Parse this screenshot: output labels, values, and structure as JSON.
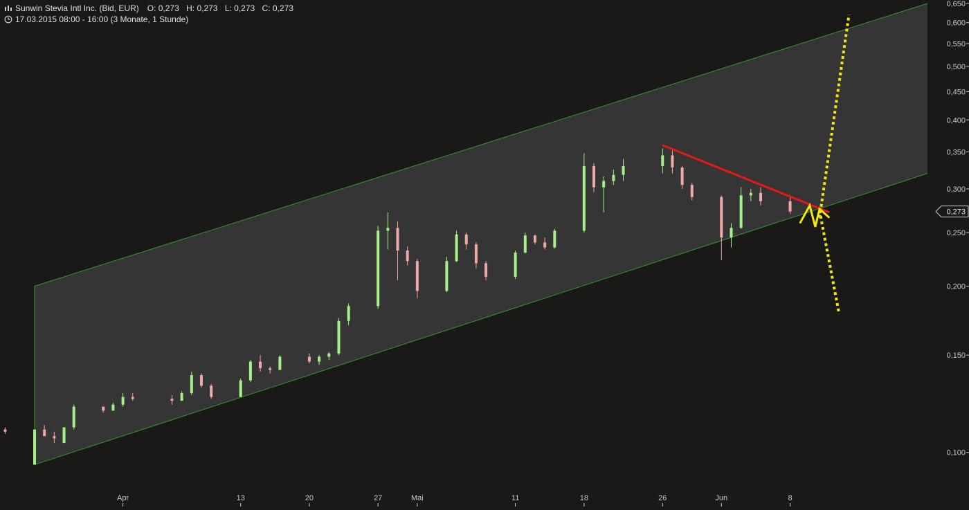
{
  "header": {
    "instrument": "Sunwin Stevia Intl Inc. (Bid, EUR)",
    "open": "O: 0,273",
    "high": "H: 0,273",
    "low": "L: 0,273",
    "close": "C: 0,273",
    "period": "17.03.2015 08:00 - 16:00 (3 Monate, 1 Stunde)"
  },
  "colors": {
    "background": "#1b1918",
    "channel_fill": "#363535",
    "channel_line": "#2e9a2e",
    "up": "#a6f08a",
    "down": "#f0a8a8",
    "resistance": "#e41919",
    "projection": "#f2e60f",
    "axis_text": "#c8c8c8"
  },
  "chart_data": {
    "type": "candlestick",
    "scale": "log",
    "ylim": [
      0.085,
      0.65
    ],
    "y_ticks": [
      "0,100",
      "0,150",
      "0,200",
      "0,250",
      "0,300",
      "0,350",
      "0,400",
      "0,450",
      "0,500",
      "0,550",
      "0,600",
      "0,650"
    ],
    "y_tick_values": [
      0.1,
      0.15,
      0.2,
      0.25,
      0.3,
      0.35,
      0.4,
      0.45,
      0.5,
      0.55,
      0.6,
      0.65
    ],
    "x_ticks": [
      "Apr",
      "13",
      "20",
      "27",
      "Mai",
      "11",
      "18",
      "26",
      "Jun",
      "8"
    ],
    "x_tick_dates": [
      "2015-04-01",
      "2015-04-13",
      "2015-04-20",
      "2015-04-27",
      "2015-05-01",
      "2015-05-11",
      "2015-05-18",
      "2015-05-26",
      "2015-06-01",
      "2015-06-08"
    ],
    "last_price_label": "0,273",
    "last_price": 0.273,
    "series": [
      {
        "kind": "ohlc",
        "values": [
          [
            "2015-03-17",
            0.115,
            0.116,
            0.114,
            0.115
          ],
          [
            "2015-03-18",
            0.115,
            0.117,
            0.112,
            0.112
          ],
          [
            "2015-03-19",
            0.112,
            0.112,
            0.109,
            0.11
          ],
          [
            "2015-03-20",
            0.11,
            0.111,
            0.108,
            0.109
          ],
          [
            "2015-03-23",
            0.095,
            0.11,
            0.095,
            0.11
          ],
          [
            "2015-03-24",
            0.11,
            0.112,
            0.107,
            0.107
          ],
          [
            "2015-03-25",
            0.107,
            0.109,
            0.104,
            0.106
          ],
          [
            "2015-03-26",
            0.104,
            0.111,
            0.104,
            0.111
          ],
          [
            "2015-03-27",
            0.111,
            0.122,
            0.11,
            0.121
          ],
          [
            "2015-03-30",
            0.121,
            0.121,
            0.118,
            0.119
          ],
          [
            "2015-03-31",
            0.119,
            0.123,
            0.119,
            0.122
          ],
          [
            "2015-04-01",
            0.122,
            0.128,
            0.121,
            0.126
          ],
          [
            "2015-04-02",
            0.126,
            0.128,
            0.124,
            0.125
          ],
          [
            "2015-04-06",
            0.125,
            0.127,
            0.122,
            0.124
          ],
          [
            "2015-04-07",
            0.124,
            0.129,
            0.124,
            0.128
          ],
          [
            "2015-04-08",
            0.128,
            0.14,
            0.127,
            0.138
          ],
          [
            "2015-04-09",
            0.138,
            0.139,
            0.131,
            0.132
          ],
          [
            "2015-04-10",
            0.132,
            0.133,
            0.125,
            0.126
          ],
          [
            "2015-04-13",
            0.126,
            0.136,
            0.126,
            0.135
          ],
          [
            "2015-04-14",
            0.135,
            0.147,
            0.134,
            0.146
          ],
          [
            "2015-04-15",
            0.146,
            0.15,
            0.14,
            0.142
          ],
          [
            "2015-04-16",
            0.142,
            0.143,
            0.139,
            0.141
          ],
          [
            "2015-04-17",
            0.141,
            0.15,
            0.141,
            0.149
          ],
          [
            "2015-04-20",
            0.149,
            0.151,
            0.145,
            0.146
          ],
          [
            "2015-04-21",
            0.146,
            0.15,
            0.144,
            0.149
          ],
          [
            "2015-04-22",
            0.149,
            0.152,
            0.147,
            0.151
          ],
          [
            "2015-04-23",
            0.151,
            0.175,
            0.15,
            0.173
          ],
          [
            "2015-04-24",
            0.173,
            0.186,
            0.17,
            0.184
          ],
          [
            "2015-04-27",
            0.184,
            0.257,
            0.182,
            0.252
          ],
          [
            "2015-04-28",
            0.252,
            0.272,
            0.233,
            0.255
          ],
          [
            "2015-04-29",
            0.255,
            0.262,
            0.205,
            0.232
          ],
          [
            "2015-04-30",
            0.232,
            0.236,
            0.218,
            0.222
          ],
          [
            "2015-05-01",
            0.222,
            0.224,
            0.19,
            0.196
          ],
          [
            "2015-05-04",
            0.196,
            0.226,
            0.195,
            0.222
          ],
          [
            "2015-05-05",
            0.222,
            0.252,
            0.221,
            0.248
          ],
          [
            "2015-05-06",
            0.248,
            0.25,
            0.233,
            0.238
          ],
          [
            "2015-05-07",
            0.238,
            0.24,
            0.215,
            0.22
          ],
          [
            "2015-05-08",
            0.22,
            0.222,
            0.205,
            0.208
          ],
          [
            "2015-05-11",
            0.208,
            0.232,
            0.206,
            0.23
          ],
          [
            "2015-05-12",
            0.23,
            0.25,
            0.229,
            0.247
          ],
          [
            "2015-05-13",
            0.247,
            0.248,
            0.238,
            0.24
          ],
          [
            "2015-05-14",
            0.24,
            0.245,
            0.233,
            0.235
          ],
          [
            "2015-05-15",
            0.235,
            0.254,
            0.234,
            0.252
          ],
          [
            "2015-05-18",
            0.252,
            0.348,
            0.25,
            0.33
          ],
          [
            "2015-05-19",
            0.33,
            0.334,
            0.296,
            0.302
          ],
          [
            "2015-05-20",
            0.302,
            0.316,
            0.272,
            0.31
          ],
          [
            "2015-05-21",
            0.31,
            0.325,
            0.305,
            0.318
          ],
          [
            "2015-05-22",
            0.318,
            0.34,
            0.31,
            0.33
          ],
          [
            "2015-05-26",
            0.33,
            0.355,
            0.32,
            0.345
          ],
          [
            "2015-05-27",
            0.345,
            0.352,
            0.32,
            0.328
          ],
          [
            "2015-05-28",
            0.328,
            0.33,
            0.3,
            0.305
          ],
          [
            "2015-05-29",
            0.305,
            0.308,
            0.286,
            0.29
          ],
          [
            "2015-06-01",
            0.29,
            0.292,
            0.223,
            0.245
          ],
          [
            "2015-06-02",
            0.245,
            0.26,
            0.235,
            0.255
          ],
          [
            "2015-06-03",
            0.255,
            0.302,
            0.254,
            0.292
          ],
          [
            "2015-06-04",
            0.292,
            0.3,
            0.285,
            0.295
          ],
          [
            "2015-06-05",
            0.295,
            0.302,
            0.28,
            0.285
          ],
          [
            "2015-06-08",
            0.285,
            0.292,
            0.27,
            0.273
          ]
        ]
      }
    ],
    "annotations": [
      {
        "name": "trend-channel",
        "kind": "parallel-channel",
        "upper": [
          [
            "2015-03-23",
            0.2
          ],
          [
            "2015-06-22",
            0.65
          ]
        ],
        "lower": [
          [
            "2015-03-23",
            0.095
          ],
          [
            "2015-06-22",
            0.32
          ]
        ]
      },
      {
        "name": "resistance-line",
        "kind": "line",
        "points": [
          [
            "2015-05-26",
            0.36
          ],
          [
            "2015-06-12",
            0.272
          ]
        ]
      },
      {
        "name": "projection-zigzag",
        "kind": "polyline",
        "points": [
          [
            "2015-06-09",
            0.26
          ],
          [
            "2015-06-10",
            0.28
          ],
          [
            "2015-06-10",
            0.256
          ],
          [
            "2015-06-11",
            0.276
          ],
          [
            "2015-06-12",
            0.266
          ]
        ]
      },
      {
        "name": "projection-up",
        "kind": "dotted-line",
        "points": [
          [
            "2015-06-11",
            0.266
          ],
          [
            "2015-06-14",
            0.62
          ]
        ]
      },
      {
        "name": "projection-down",
        "kind": "dotted-line",
        "points": [
          [
            "2015-06-11",
            0.274
          ],
          [
            "2015-06-13",
            0.178
          ]
        ]
      }
    ]
  }
}
